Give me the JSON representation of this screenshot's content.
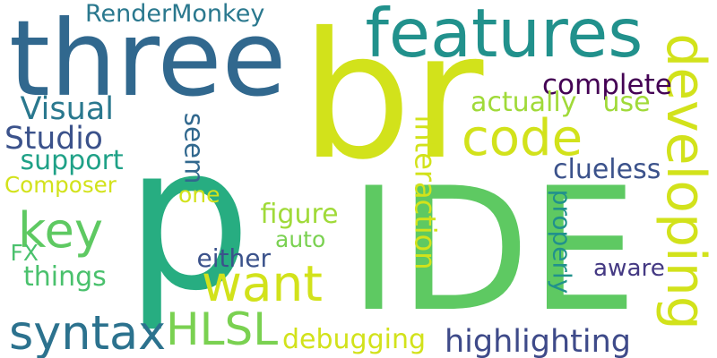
{
  "words": [
    {
      "text": "p",
      "color": "#27ad81"
    },
    {
      "text": "IDE",
      "color": "#5ec962"
    },
    {
      "text": "br",
      "color": "#d2e21b"
    },
    {
      "text": "three",
      "color": "#31688e"
    },
    {
      "text": "features",
      "color": "#21918c"
    },
    {
      "text": "developing",
      "color": "#d2e21b"
    },
    {
      "text": "code",
      "color": "#d2e21b"
    },
    {
      "text": "key",
      "color": "#5ec962"
    },
    {
      "text": "want",
      "color": "#d2e21b"
    },
    {
      "text": "HLSL",
      "color": "#7ad151"
    },
    {
      "text": "syntax",
      "color": "#2c728e"
    },
    {
      "text": "RenderMonkey",
      "color": "#2a788e"
    },
    {
      "text": "complete",
      "color": "#440154"
    },
    {
      "text": "actually",
      "color": "#a0da39"
    },
    {
      "text": "use",
      "color": "#a0da39"
    },
    {
      "text": "Visual",
      "color": "#2a788e"
    },
    {
      "text": "Studio",
      "color": "#3b528b"
    },
    {
      "text": "support",
      "color": "#1fa187"
    },
    {
      "text": "Composer",
      "color": "#d2e21b"
    },
    {
      "text": "seem",
      "color": "#31688e"
    },
    {
      "text": "one",
      "color": "#d2e21b"
    },
    {
      "text": "interaction",
      "color": "#d2e21b"
    },
    {
      "text": "clueless",
      "color": "#3b528b"
    },
    {
      "text": "figure",
      "color": "#a0da39"
    },
    {
      "text": "auto",
      "color": "#7ad151"
    },
    {
      "text": "either",
      "color": "#3b528b"
    },
    {
      "text": "FX",
      "color": "#4ac16d"
    },
    {
      "text": "things",
      "color": "#4ac16d"
    },
    {
      "text": "properly",
      "color": "#21918c"
    },
    {
      "text": "aware",
      "color": "#443983"
    },
    {
      "text": "debugging",
      "color": "#d2e21b"
    },
    {
      "text": "highlighting",
      "color": "#3e4a89"
    }
  ]
}
